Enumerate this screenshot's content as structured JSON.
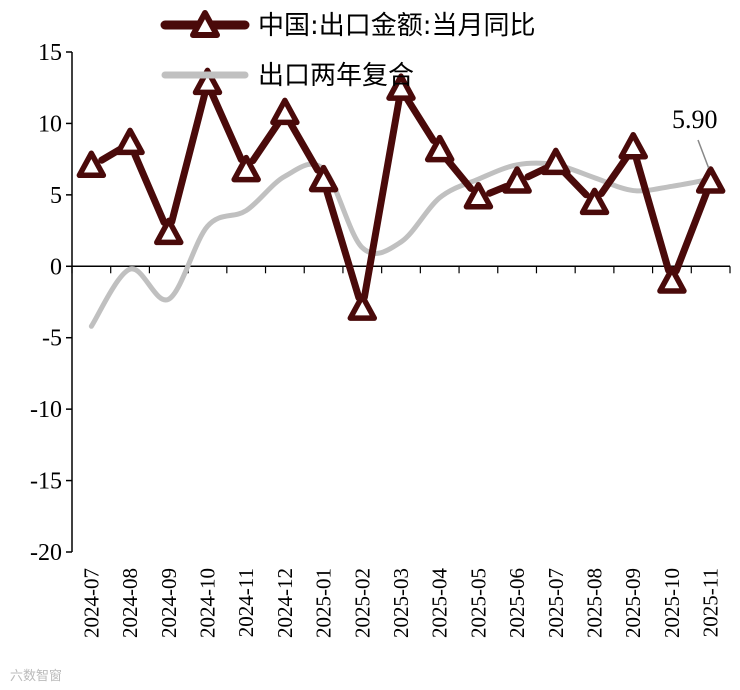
{
  "chart_data": {
    "type": "line",
    "title": "",
    "xlabel": "",
    "ylabel": "",
    "ylim": [
      -20,
      15
    ],
    "yticks": [
      15,
      10,
      5,
      0,
      -5,
      -10,
      -15,
      -20
    ],
    "x": [
      "2024-07",
      "2024-08",
      "2024-09",
      "2024-10",
      "2024-11",
      "2024-12",
      "2025-01",
      "2025-02",
      "2025-03",
      "2025-04",
      "2025-05",
      "2025-06",
      "2025-07",
      "2025-08",
      "2025-09",
      "2025-10",
      "2025-11"
    ],
    "series": [
      {
        "name": "中国:出口金额:当月同比",
        "color": "#4a0a0a",
        "marker": "triangle",
        "values": [
          7.0,
          8.6,
          2.3,
          12.8,
          6.7,
          10.7,
          6.0,
          -3.0,
          12.4,
          8.1,
          4.8,
          5.9,
          7.2,
          4.4,
          8.3,
          -1.1,
          5.9
        ]
      },
      {
        "name": "出口两年复合",
        "color": "#c0c0c0",
        "marker": "none",
        "values": [
          -4.2,
          -0.2,
          -2.3,
          2.8,
          3.9,
          6.3,
          6.8,
          1.3,
          1.7,
          4.8,
          6.1,
          7.1,
          7.1,
          6.2,
          5.3,
          5.6,
          6.1
        ]
      }
    ],
    "legend_position": "top",
    "grid": false,
    "annotations": [
      {
        "text": "5.90",
        "series": 0,
        "point_index": 16
      }
    ]
  },
  "watermark": "六数智窗"
}
